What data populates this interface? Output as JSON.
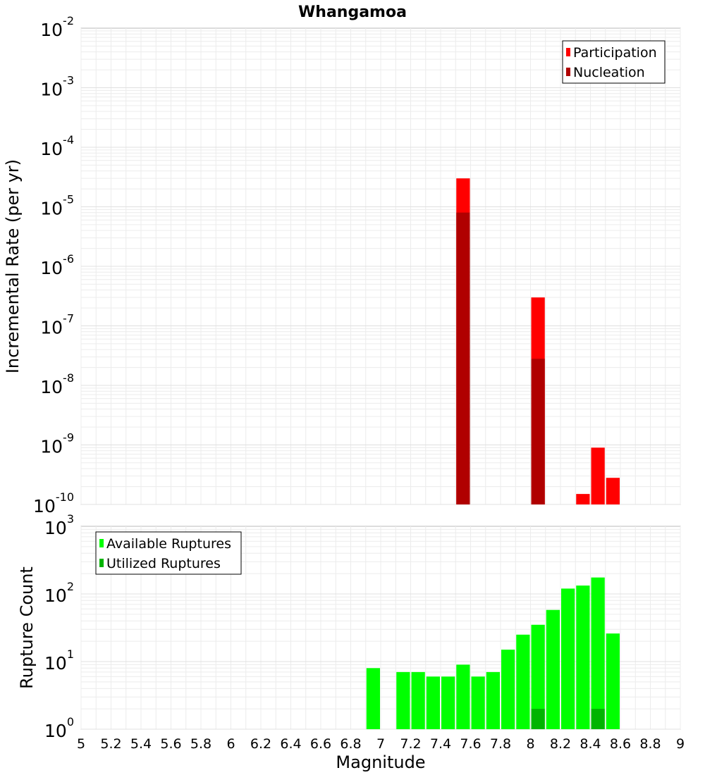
{
  "chart_data": [
    {
      "type": "bar",
      "title": "Whangamoa",
      "ylabel": "Incremental Rate (per yr)",
      "xlabel": "",
      "y_scale": "log",
      "ylim_exp": [
        -10,
        -2
      ],
      "xlim": [
        5,
        9
      ],
      "bar_width": 0.1,
      "legend_position": "top-right",
      "series": [
        {
          "name": "Participation",
          "color": "#ff0000",
          "points": [
            {
              "x": 7.55,
              "y": 3e-05
            },
            {
              "x": 8.05,
              "y": 3e-07
            },
            {
              "x": 8.35,
              "y": 1.5e-10
            },
            {
              "x": 8.45,
              "y": 9e-10
            },
            {
              "x": 8.55,
              "y": 2.8e-10
            }
          ]
        },
        {
          "name": "Nucleation",
          "color": "#b00000",
          "points": [
            {
              "x": 7.55,
              "y": 8e-06
            },
            {
              "x": 8.05,
              "y": 2.8e-08
            }
          ]
        }
      ]
    },
    {
      "type": "bar",
      "title": "",
      "ylabel": "Rupture Count",
      "xlabel": "Magnitude",
      "y_scale": "log",
      "ylim_exp": [
        0,
        3
      ],
      "xlim": [
        5,
        9
      ],
      "bar_width": 0.1,
      "legend_position": "top-left",
      "x_ticks": [
        "5",
        "5.2",
        "5.4",
        "5.6",
        "5.8",
        "6",
        "6.2",
        "6.4",
        "6.6",
        "6.8",
        "7",
        "7.2",
        "7.4",
        "7.6",
        "7.8",
        "8",
        "8.2",
        "8.4",
        "8.6",
        "8.8",
        "9"
      ],
      "series": [
        {
          "name": "Available Ruptures",
          "color": "#00ff00",
          "points": [
            {
              "x": 6.95,
              "y": 8
            },
            {
              "x": 7.15,
              "y": 7
            },
            {
              "x": 7.25,
              "y": 7
            },
            {
              "x": 7.35,
              "y": 6
            },
            {
              "x": 7.45,
              "y": 6
            },
            {
              "x": 7.55,
              "y": 9
            },
            {
              "x": 7.65,
              "y": 6
            },
            {
              "x": 7.75,
              "y": 7
            },
            {
              "x": 7.85,
              "y": 15
            },
            {
              "x": 7.95,
              "y": 25
            },
            {
              "x": 8.05,
              "y": 35
            },
            {
              "x": 8.15,
              "y": 58
            },
            {
              "x": 8.25,
              "y": 120
            },
            {
              "x": 8.35,
              "y": 133
            },
            {
              "x": 8.45,
              "y": 175
            },
            {
              "x": 8.55,
              "y": 26
            }
          ]
        },
        {
          "name": "Utilized Ruptures",
          "color": "#00b400",
          "points": [
            {
              "x": 7.55,
              "y": 1
            },
            {
              "x": 8.05,
              "y": 2
            },
            {
              "x": 8.35,
              "y": 1
            },
            {
              "x": 8.45,
              "y": 2
            },
            {
              "x": 8.55,
              "y": 1
            }
          ]
        }
      ]
    }
  ]
}
